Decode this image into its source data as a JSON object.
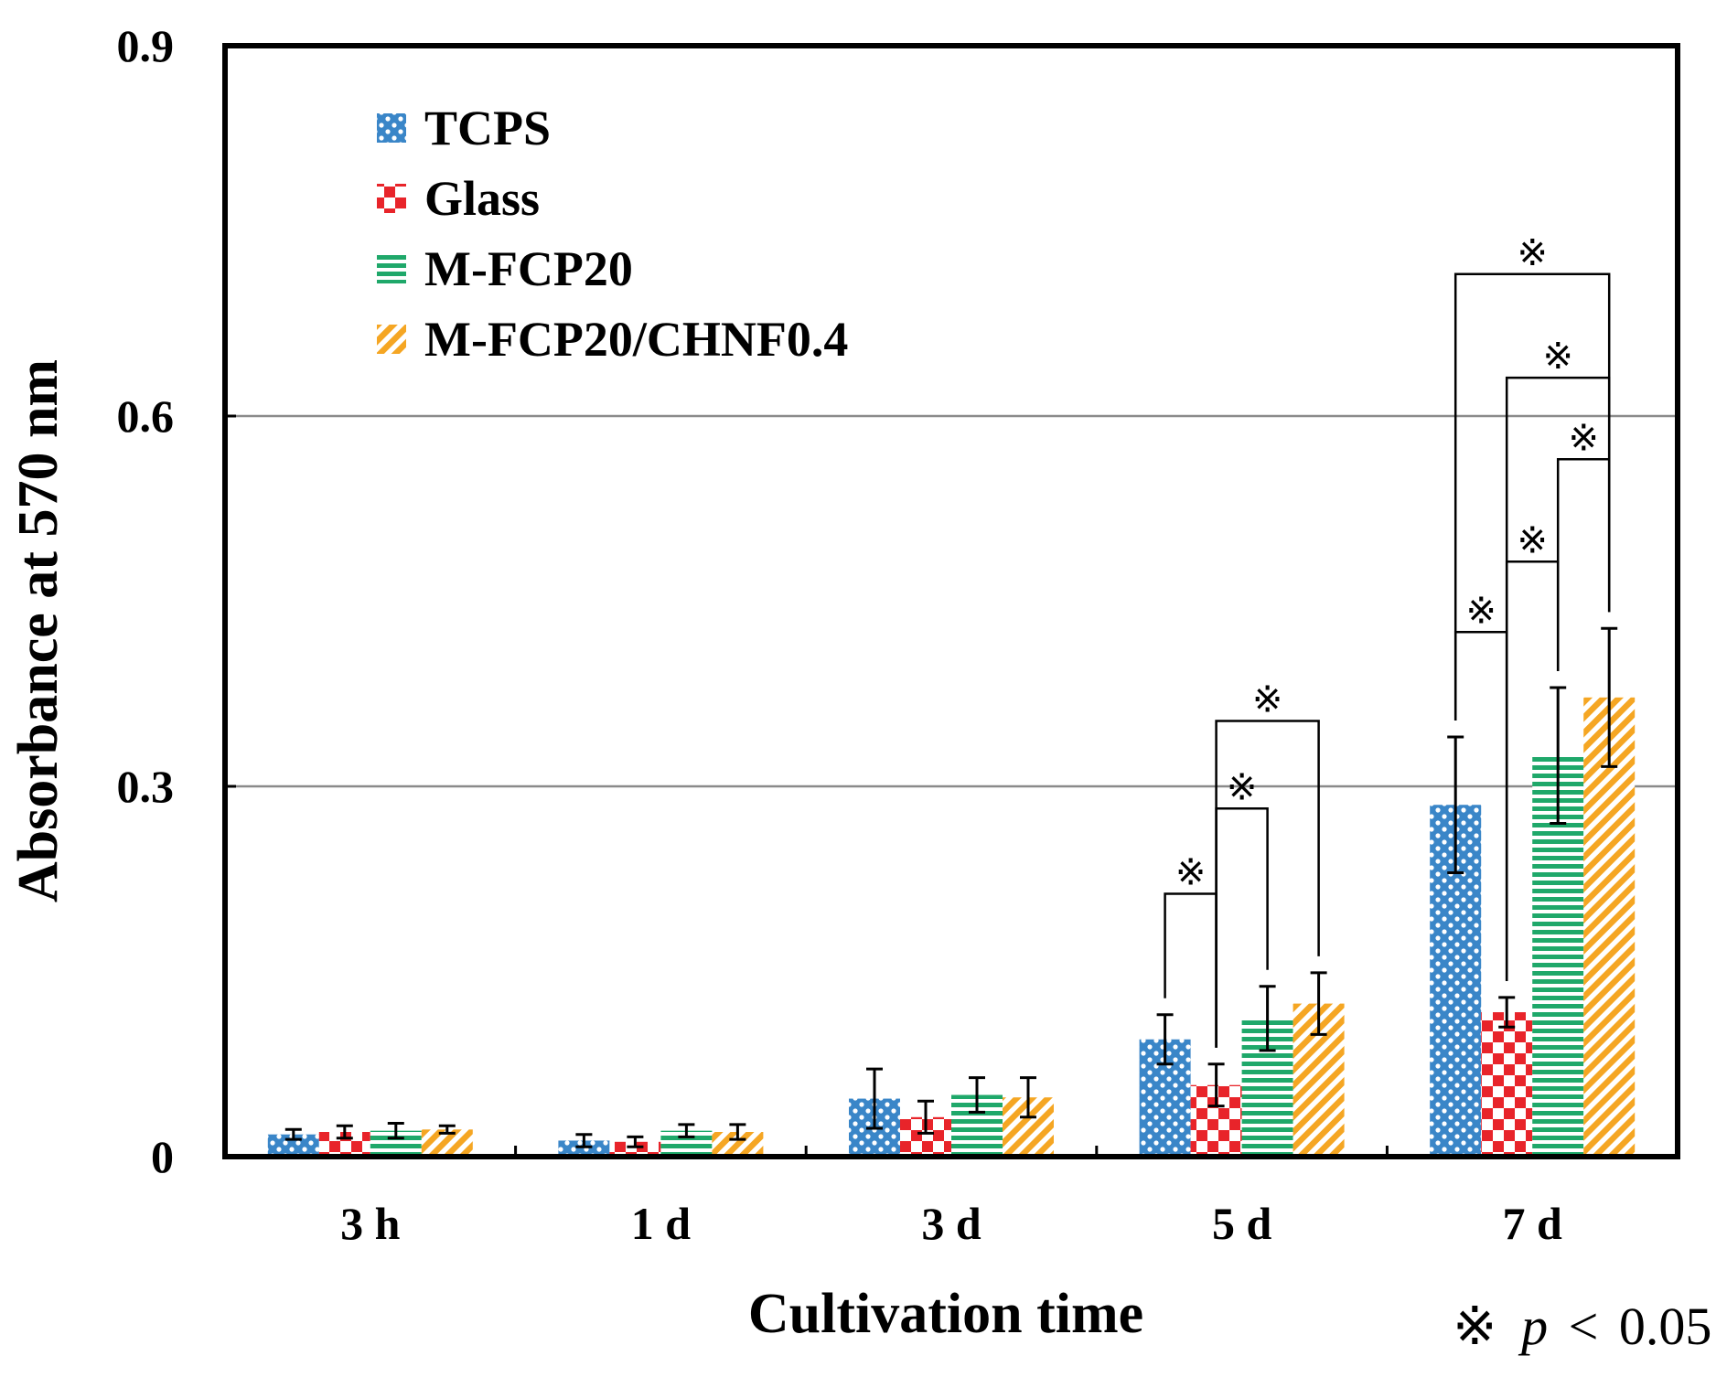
{
  "chart_data": {
    "type": "bar",
    "title": "",
    "xlabel": "Cultivation time",
    "ylabel": "Absorbance at 570 nm",
    "ylim": [
      0,
      0.9
    ],
    "yticks": [
      0,
      0.3,
      0.6,
      0.9
    ],
    "ytick_labels": [
      "0",
      "0.3",
      "0.6",
      "0.9"
    ],
    "gridlines": [
      0.3,
      0.6
    ],
    "legend_position": "top-left",
    "categories": [
      "3 h",
      "1 d",
      "3 d",
      "5 d",
      "7 d"
    ],
    "series": [
      {
        "name": "TCPS",
        "color": "#3a86c8",
        "pattern": "dots",
        "values": [
          0.018,
          0.013,
          0.047,
          0.095,
          0.285
        ],
        "errors": [
          0.004,
          0.005,
          0.024,
          0.02,
          0.055
        ]
      },
      {
        "name": "Glass",
        "color": "#e8242a",
        "pattern": "checker",
        "values": [
          0.02,
          0.012,
          0.032,
          0.058,
          0.117
        ],
        "errors": [
          0.005,
          0.004,
          0.013,
          0.017,
          0.012
        ]
      },
      {
        "name": "M-FCP20",
        "color": "#1fa86a",
        "pattern": "hlines",
        "values": [
          0.021,
          0.021,
          0.05,
          0.112,
          0.325
        ],
        "errors": [
          0.006,
          0.005,
          0.014,
          0.026,
          0.055
        ]
      },
      {
        "name": "M-FCP20/CHNF0.4",
        "color": "#f5a623",
        "pattern": "diag",
        "values": [
          0.022,
          0.02,
          0.048,
          0.124,
          0.372
        ],
        "errors": [
          0.003,
          0.006,
          0.016,
          0.025,
          0.056
        ]
      }
    ],
    "significance": [
      {
        "category": "5 d",
        "from": 0,
        "to": 1,
        "level": 0.213
      },
      {
        "category": "5 d",
        "from": 1,
        "to": 2,
        "level": 0.282
      },
      {
        "category": "5 d",
        "from": 1,
        "to": 3,
        "level": 0.353
      },
      {
        "category": "7 d",
        "from": 0,
        "to": 1,
        "level": 0.425
      },
      {
        "category": "7 d",
        "from": 1,
        "to": 2,
        "level": 0.482
      },
      {
        "category": "7 d",
        "from": 2,
        "to": 3,
        "level": 0.565
      },
      {
        "category": "7 d",
        "from": 1,
        "to": 3,
        "level": 0.631
      },
      {
        "category": "7 d",
        "from": 0,
        "to": 3,
        "level": 0.715
      }
    ],
    "significance_symbol": "※",
    "footnote": {
      "symbol": "※",
      "variable": "p",
      "relation": "<",
      "value": "0.05"
    }
  }
}
